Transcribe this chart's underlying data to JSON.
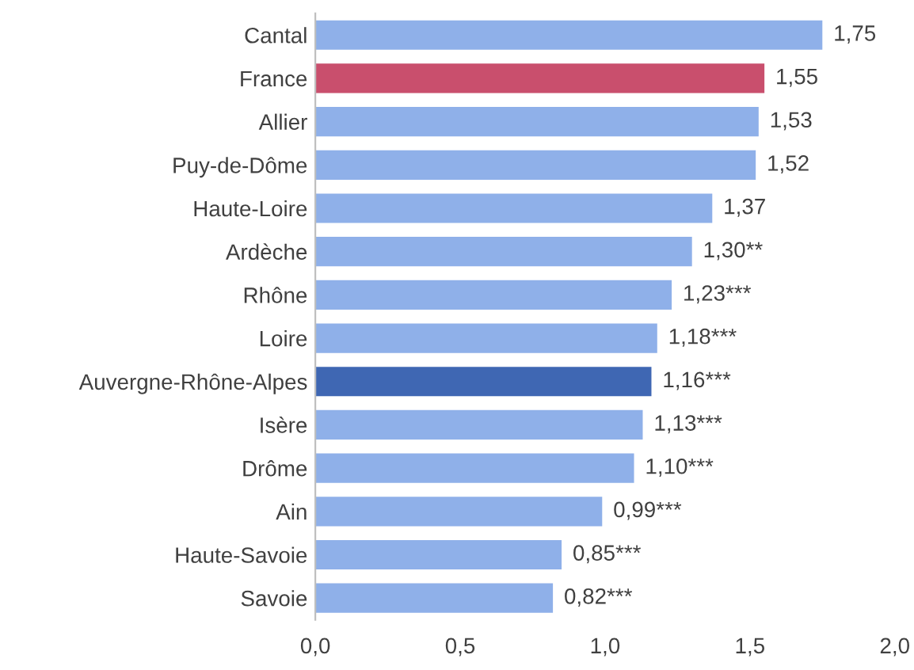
{
  "chart_data": {
    "type": "bar",
    "orientation": "horizontal",
    "categories": [
      "Cantal",
      "France",
      "Allier",
      "Puy-de-Dôme",
      "Haute-Loire",
      "Ardèche",
      "Rhône",
      "Loire",
      "Auvergne-Rhône-Alpes",
      "Isère",
      "Drôme",
      "Ain",
      "Haute-Savoie",
      "Savoie"
    ],
    "values": [
      1.75,
      1.55,
      1.53,
      1.52,
      1.37,
      1.3,
      1.23,
      1.18,
      1.16,
      1.13,
      1.1,
      0.99,
      0.85,
      0.82
    ],
    "value_labels": [
      "1,75",
      "1,55",
      "1,53",
      "1,52",
      "1,37",
      "1,30**",
      "1,23***",
      "1,18***",
      "1,16***",
      "1,13***",
      "1,10***",
      "0,99***",
      "0,85***",
      "0,82***"
    ],
    "colors": [
      "#8fb0e9",
      "#c94f6d",
      "#8fb0e9",
      "#8fb0e9",
      "#8fb0e9",
      "#8fb0e9",
      "#8fb0e9",
      "#8fb0e9",
      "#3f67b3",
      "#8fb0e9",
      "#8fb0e9",
      "#8fb0e9",
      "#8fb0e9",
      "#8fb0e9"
    ],
    "xlim": [
      0,
      2
    ],
    "xticks": [
      {
        "value": 0,
        "label": "0,0"
      },
      {
        "value": 0.5,
        "label": "0,5"
      },
      {
        "value": 1,
        "label": "1,0"
      },
      {
        "value": 1.5,
        "label": "1,5"
      },
      {
        "value": 2,
        "label": "2,0"
      }
    ],
    "grid": false,
    "legend": false
  }
}
